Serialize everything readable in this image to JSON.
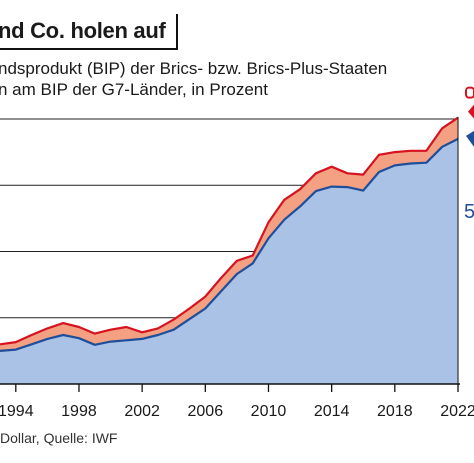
{
  "title": "nd Co. holen auf",
  "subtitle_lines": [
    "ndsprodukt (BIP) der Brics- bzw. Brics-Plus-Staaten",
    "n am BIP der G7-Länder, in Prozent"
  ],
  "footer": "Dollar, Quelle: IWF",
  "end_label_lower": "5",
  "colors": {
    "brics_area": "#a9c2e6",
    "brics_line": "#1f4e9a",
    "brics_plus_area": "#f4a183",
    "brics_plus_line": "#d7131f",
    "grid": "#222222"
  },
  "chart_data": {
    "type": "area",
    "title": "",
    "xlabel": "",
    "ylabel": "",
    "xlim": [
      1993,
      2022
    ],
    "ylim": [
      0,
      100
    ],
    "grid": true,
    "x_ticks": [
      "1994",
      "1998",
      "2002",
      "2006",
      "2010",
      "2014",
      "2018",
      "2022"
    ],
    "x": [
      1993,
      1994,
      1995,
      1996,
      1997,
      1998,
      1999,
      2000,
      2001,
      2002,
      2003,
      2004,
      2005,
      2006,
      2007,
      2008,
      2009,
      2010,
      2011,
      2012,
      2013,
      2014,
      2015,
      2016,
      2017,
      2018,
      2019,
      2020,
      2021,
      2022
    ],
    "series": [
      {
        "values": [
          12.5,
          13.0,
          15.0,
          17.0,
          18.5,
          17.3,
          14.8,
          16.0,
          16.5,
          17.0,
          18.5,
          20.5,
          24.5,
          28.5,
          35.0,
          41.5,
          45.5,
          55.0,
          62.0,
          67.0,
          72.8,
          74.5,
          74.3,
          73.0,
          80.0,
          82.5,
          83.2,
          83.5,
          89.5,
          92.5
        ]
      },
      {
        "values": [
          15.0,
          15.8,
          18.5,
          21.0,
          23.0,
          21.5,
          19.0,
          20.5,
          21.5,
          19.5,
          21.0,
          24.3,
          28.5,
          33.0,
          40.0,
          46.5,
          48.5,
          61.0,
          69.5,
          73.5,
          79.5,
          82.0,
          79.5,
          79.0,
          86.5,
          87.5,
          88.0,
          88.0,
          96.5,
          100.5
        ]
      }
    ]
  }
}
